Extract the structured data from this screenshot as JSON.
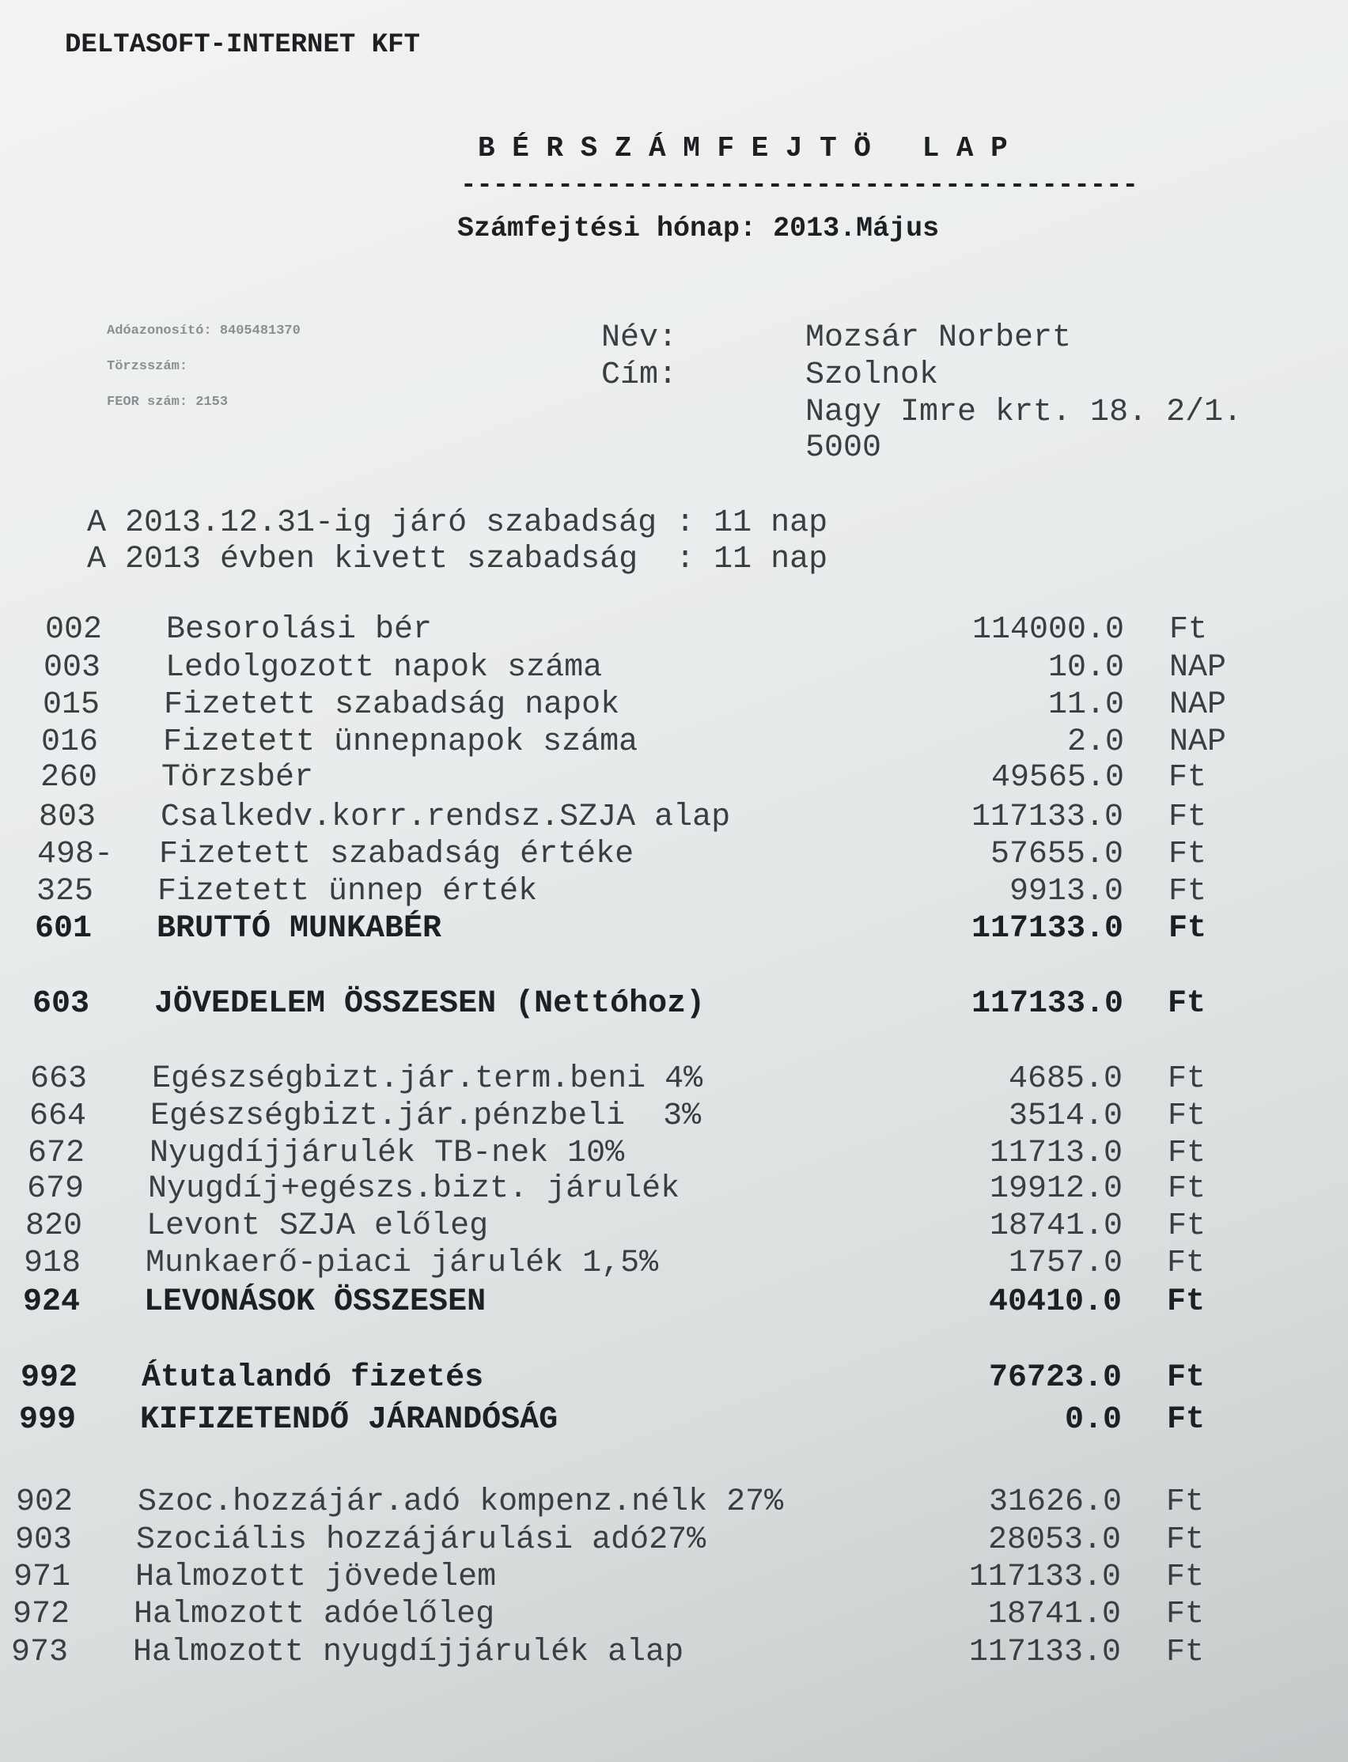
{
  "company": "DELTASOFT-INTERNET KFT",
  "title": "B É R S Z Á M F E J T Ö   L A P",
  "title_rule": "------------------------------------------",
  "month_line": "Számfejtési hónap: 2013.Május",
  "ids": {
    "tax_id": "Adóazonosító: 8405481370",
    "reg_no": "Törzsszám:",
    "feor": "FEOR szám: 2153"
  },
  "person": {
    "name_label": "Név:",
    "name": "Mozsár Norbert",
    "addr_label": "Cím:",
    "city": "Szolnok",
    "street": "Nagy Imre krt. 18. 2/1.",
    "zip": "5000"
  },
  "leave": [
    "A 2013.12.31-ig járó szabadság : 11 nap",
    "A 2013 évben kivett szabadság  : 11 nap"
  ],
  "rows": [
    {
      "code": "002",
      "label": "Besorolási bér",
      "value": "114000.0",
      "unit": "Ft",
      "bold": false
    },
    {
      "code": "003",
      "label": "Ledolgozott napok száma",
      "value": "10.0",
      "unit": "NAP",
      "bold": false
    },
    {
      "code": "015",
      "label": "Fizetett szabadság napok",
      "value": "11.0",
      "unit": "NAP",
      "bold": false
    },
    {
      "code": "016",
      "label": "Fizetett ünnepnapok száma",
      "value": "2.0",
      "unit": "NAP",
      "bold": false
    },
    {
      "code": "260",
      "label": "Törzsbér",
      "value": "49565.0",
      "unit": "Ft",
      "bold": false
    },
    {
      "code": "803",
      "label": "Csalkedv.korr.rendsz.SZJA alap",
      "value": "117133.0",
      "unit": "Ft",
      "bold": false
    },
    {
      "code": "498-",
      "label": "Fizetett szabadság értéke",
      "value": "57655.0",
      "unit": "Ft",
      "bold": false
    },
    {
      "code": "325",
      "label": "Fizetett ünnep érték",
      "value": "9913.0",
      "unit": "Ft",
      "bold": false
    },
    {
      "code": "601",
      "label": "BRUTTÓ MUNKABÉR",
      "value": "117133.0",
      "unit": "Ft",
      "bold": true
    },
    {
      "code": "603",
      "label": "JÖVEDELEM ÖSSZESEN (Nettóhoz)",
      "value": "117133.0",
      "unit": "Ft",
      "bold": true
    },
    {
      "code": "663",
      "label": "Egészségbizt.jár.term.beni 4%",
      "value": "4685.0",
      "unit": "Ft",
      "bold": false
    },
    {
      "code": "664",
      "label": "Egészségbizt.jár.pénzbeli  3%",
      "value": "3514.0",
      "unit": "Ft",
      "bold": false
    },
    {
      "code": "672",
      "label": "Nyugdíjjárulék TB-nek 10%",
      "value": "11713.0",
      "unit": "Ft",
      "bold": false
    },
    {
      "code": "679",
      "label": "Nyugdíj+egészs.bizt. járulék",
      "value": "19912.0",
      "unit": "Ft",
      "bold": false
    },
    {
      "code": "820",
      "label": "Levont SZJA előleg",
      "value": "18741.0",
      "unit": "Ft",
      "bold": false
    },
    {
      "code": "918",
      "label": "Munkaerő-piaci járulék 1,5%",
      "value": "1757.0",
      "unit": "Ft",
      "bold": false
    },
    {
      "code": "924",
      "label": "LEVONÁSOK ÖSSZESEN",
      "value": "40410.0",
      "unit": "Ft",
      "bold": true
    },
    {
      "code": "992",
      "label": "Átutalandó fizetés",
      "value": "76723.0",
      "unit": "Ft",
      "bold": true
    },
    {
      "code": "999",
      "label": "KIFIZETENDŐ JÁRANDÓSÁG",
      "value": "0.0",
      "unit": "Ft",
      "bold": true
    },
    {
      "code": "902",
      "label": "Szoc.hozzájár.adó kompenz.nélk 27%",
      "value": "31626.0",
      "unit": "Ft",
      "bold": false
    },
    {
      "code": "903",
      "label": "Szociális hozzájárulási adó27%",
      "value": "28053.0",
      "unit": "Ft",
      "bold": false
    },
    {
      "code": "971",
      "label": "Halmozott jövedelem",
      "value": "117133.0",
      "unit": "Ft",
      "bold": false
    },
    {
      "code": "972",
      "label": "Halmozott adóelőleg",
      "value": "18741.0",
      "unit": "Ft",
      "bold": false
    },
    {
      "code": "973",
      "label": "Halmozott nyugdíjjárulék alap",
      "value": "117133.0",
      "unit": "Ft",
      "bold": false
    }
  ]
}
